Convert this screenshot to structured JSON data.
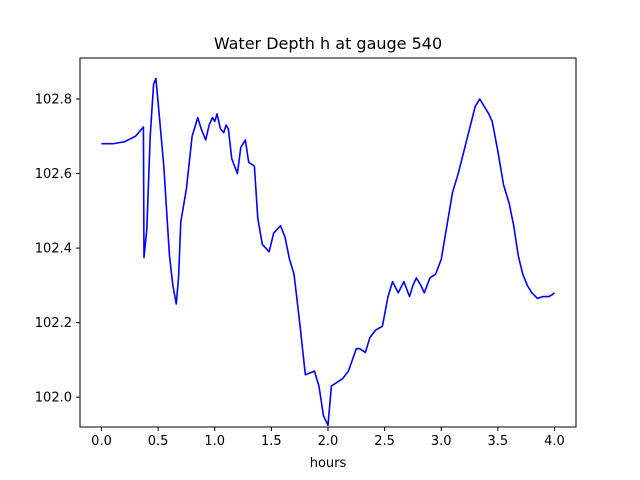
{
  "chart_data": {
    "type": "line",
    "title": "Water Depth h at gauge 540",
    "xlabel": "hours",
    "ylabel": "",
    "xlim": [
      -0.19,
      4.19
    ],
    "ylim": [
      101.92,
      102.91
    ],
    "xticks": [
      0.0,
      0.5,
      1.0,
      1.5,
      2.0,
      2.5,
      3.0,
      3.5,
      4.0
    ],
    "xtick_labels": [
      "0.0",
      "0.5",
      "1.0",
      "1.5",
      "2.0",
      "2.5",
      "3.0",
      "3.5",
      "4.0"
    ],
    "yticks": [
      102.0,
      102.2,
      102.4,
      102.6,
      102.8
    ],
    "ytick_labels": [
      "102.0",
      "102.2",
      "102.4",
      "102.6",
      "102.8"
    ],
    "grid": false,
    "series": [
      {
        "color": "#0000ff",
        "x": [
          0.0,
          0.1,
          0.2,
          0.3,
          0.37,
          0.375,
          0.4,
          0.43,
          0.46,
          0.48,
          0.5,
          0.55,
          0.6,
          0.63,
          0.66,
          0.68,
          0.7,
          0.75,
          0.8,
          0.85,
          0.88,
          0.92,
          0.95,
          0.98,
          1.0,
          1.02,
          1.05,
          1.08,
          1.1,
          1.12,
          1.15,
          1.2,
          1.23,
          1.27,
          1.3,
          1.35,
          1.38,
          1.42,
          1.48,
          1.52,
          1.58,
          1.62,
          1.66,
          1.7,
          1.75,
          1.8,
          1.84,
          1.88,
          1.92,
          1.96,
          2.0,
          2.03,
          2.08,
          2.13,
          2.18,
          2.25,
          2.28,
          2.33,
          2.37,
          2.42,
          2.48,
          2.53,
          2.57,
          2.62,
          2.67,
          2.72,
          2.75,
          2.78,
          2.82,
          2.85,
          2.9,
          2.95,
          3.0,
          3.05,
          3.1,
          3.15,
          3.2,
          3.25,
          3.3,
          3.34,
          3.38,
          3.42,
          3.45,
          3.5,
          3.55,
          3.6,
          3.64,
          3.68,
          3.72,
          3.76,
          3.8,
          3.85,
          3.9,
          3.95,
          3.98,
          4.0
        ],
        "y": [
          102.68,
          102.68,
          102.685,
          102.7,
          102.725,
          102.375,
          102.45,
          102.7,
          102.84,
          102.855,
          102.79,
          102.62,
          102.38,
          102.3,
          102.25,
          102.32,
          102.47,
          102.56,
          102.7,
          102.75,
          102.72,
          102.69,
          102.73,
          102.75,
          102.74,
          102.76,
          102.72,
          102.71,
          102.73,
          102.72,
          102.64,
          102.6,
          102.67,
          102.69,
          102.63,
          102.62,
          102.48,
          102.41,
          102.39,
          102.44,
          102.46,
          102.43,
          102.37,
          102.33,
          102.2,
          102.06,
          102.065,
          102.07,
          102.03,
          101.95,
          101.925,
          102.03,
          102.04,
          102.05,
          102.07,
          102.13,
          102.13,
          102.12,
          102.16,
          102.18,
          102.19,
          102.27,
          102.31,
          102.28,
          102.31,
          102.27,
          102.3,
          102.32,
          102.3,
          102.28,
          102.32,
          102.33,
          102.37,
          102.46,
          102.55,
          102.6,
          102.66,
          102.72,
          102.78,
          102.8,
          102.78,
          102.76,
          102.74,
          102.66,
          102.57,
          102.52,
          102.46,
          102.38,
          102.33,
          102.3,
          102.28,
          102.265,
          102.27,
          102.27,
          102.275,
          102.28
        ]
      }
    ]
  }
}
